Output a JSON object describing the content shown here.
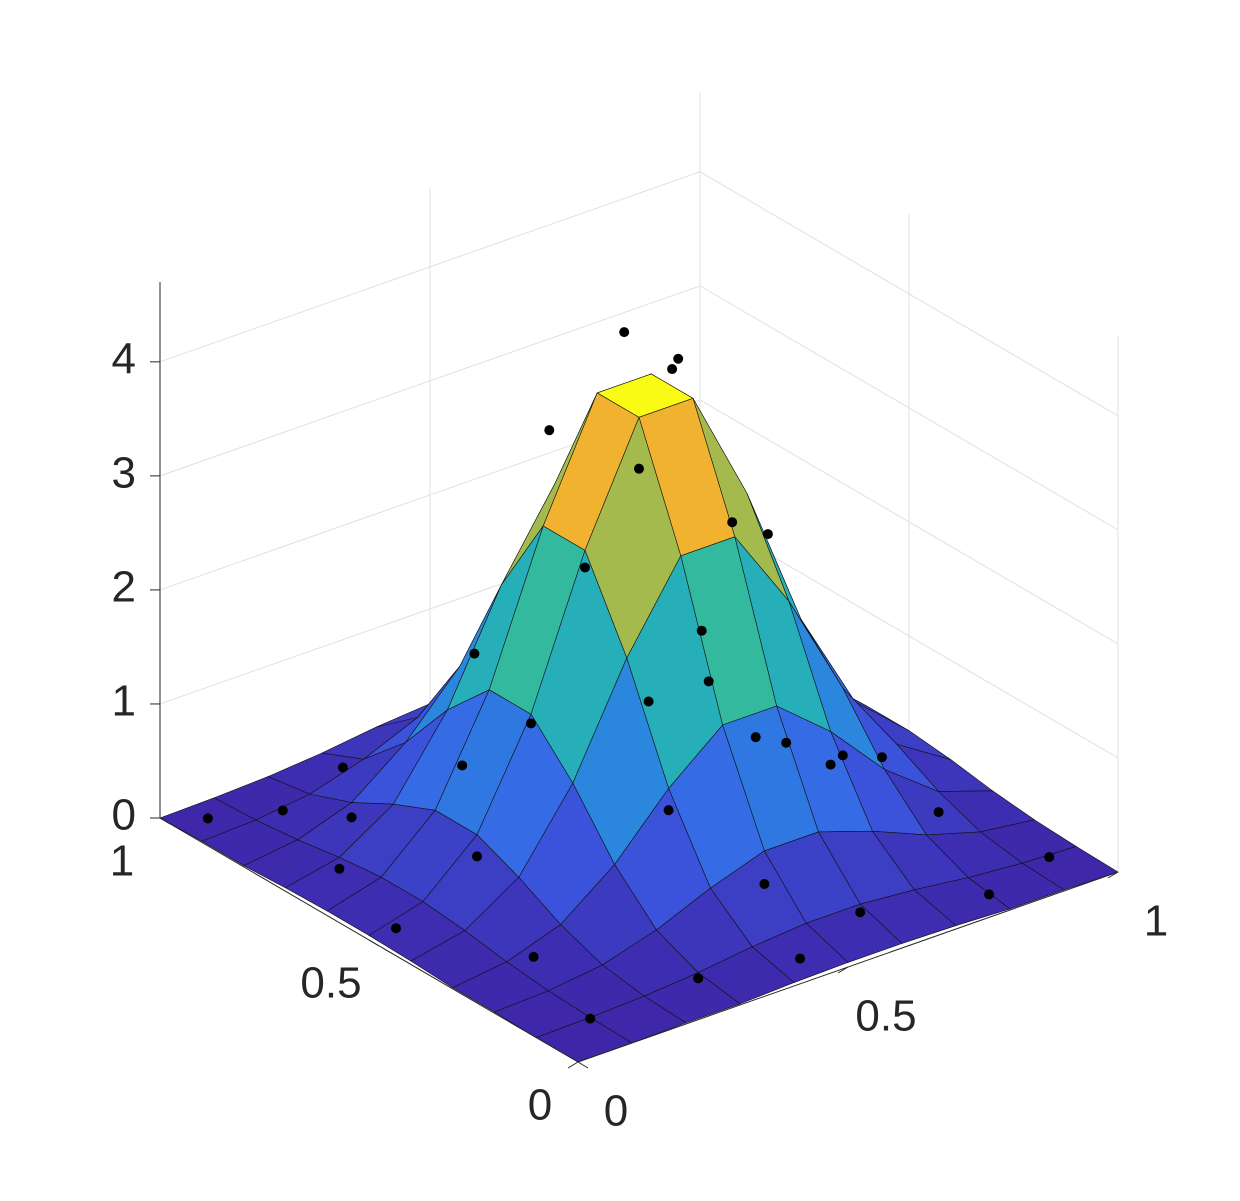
{
  "chart_data": {
    "type": "surface",
    "x": [
      0,
      0.1,
      0.2,
      0.3,
      0.4,
      0.5,
      0.6,
      0.7,
      0.8,
      0.9,
      1
    ],
    "y": [
      0,
      0.1,
      0.2,
      0.3,
      0.4,
      0.5,
      0.6,
      0.7,
      0.8,
      0.9,
      1
    ],
    "z": [
      [
        0.0,
        0.0,
        0.01,
        0.01,
        0.03,
        0.04,
        0.04,
        0.03,
        0.01,
        0.01,
        0.0
      ],
      [
        0.0,
        0.01,
        0.03,
        0.07,
        0.13,
        0.17,
        0.17,
        0.13,
        0.07,
        0.03,
        0.01
      ],
      [
        0.01,
        0.03,
        0.09,
        0.23,
        0.43,
        0.59,
        0.59,
        0.43,
        0.23,
        0.09,
        0.03
      ],
      [
        0.01,
        0.07,
        0.23,
        0.59,
        1.09,
        1.48,
        1.48,
        1.09,
        0.59,
        0.23,
        0.07
      ],
      [
        0.03,
        0.13,
        0.43,
        1.09,
        2.02,
        2.75,
        2.75,
        2.02,
        1.09,
        0.43,
        0.13
      ],
      [
        0.04,
        0.17,
        0.59,
        1.48,
        2.75,
        3.75,
        3.75,
        2.75,
        1.48,
        0.59,
        0.17
      ],
      [
        0.04,
        0.17,
        0.59,
        1.48,
        2.75,
        3.75,
        3.75,
        2.75,
        1.48,
        0.59,
        0.17
      ],
      [
        0.03,
        0.13,
        0.43,
        1.09,
        2.02,
        2.75,
        2.75,
        2.02,
        1.09,
        0.43,
        0.13
      ],
      [
        0.01,
        0.07,
        0.23,
        0.59,
        1.09,
        1.48,
        1.48,
        1.09,
        0.59,
        0.23,
        0.07
      ],
      [
        0.01,
        0.03,
        0.09,
        0.23,
        0.43,
        0.59,
        0.59,
        0.43,
        0.23,
        0.09,
        0.03
      ],
      [
        0.0,
        0.01,
        0.03,
        0.07,
        0.13,
        0.17,
        0.17,
        0.13,
        0.07,
        0.03,
        0.01
      ]
    ],
    "points": {
      "color": "#000000",
      "x": [
        0.05,
        0.15,
        0.3,
        0.1,
        0.2,
        0.05,
        0.15,
        0.3,
        0.1,
        0.45,
        0.6,
        0.8,
        0.95,
        0.9,
        0.95,
        0.85,
        0.75,
        0.9,
        0.4,
        0.6,
        0.35,
        0.5,
        0.55,
        0.6,
        0.45,
        0.65,
        0.4,
        0.7,
        0.3,
        0.5,
        0.75,
        0.25,
        0.7,
        0.2,
        0.5,
        0.8
      ],
      "y": [
        0.95,
        0.9,
        0.95,
        0.7,
        0.8,
        0.5,
        0.3,
        0.1,
        0.1,
        0.05,
        0.1,
        0.05,
        0.1,
        0.3,
        0.5,
        0.6,
        0.8,
        0.85,
        0.3,
        0.35,
        0.7,
        0.5,
        0.6,
        0.55,
        0.65,
        0.6,
        0.5,
        0.45,
        0.5,
        0.35,
        0.6,
        0.6,
        0.3,
        0.5,
        0.2,
        0.4
      ],
      "z": [
        0.02,
        0.03,
        0.05,
        0.03,
        0.1,
        0.02,
        0.03,
        0.02,
        0.0,
        0.05,
        0.1,
        0.03,
        0.0,
        0.05,
        0.02,
        0.1,
        0.2,
        0.02,
        0.9,
        1.1,
        1.5,
        3.3,
        4.2,
        3.9,
        3.4,
        3.8,
        2.6,
        2.5,
        1.4,
        2.2,
        2.2,
        0.9,
        0.8,
        0.4,
        0.3,
        0.5
      ]
    },
    "colormap": "parula",
    "xlim": [
      0,
      1
    ],
    "ylim": [
      0,
      1
    ],
    "zlim": [
      0,
      4.7
    ],
    "xticks": [
      0,
      0.5,
      1
    ],
    "yticks": [
      0,
      0.5,
      1
    ],
    "zticks": [
      0,
      1,
      2,
      3,
      4
    ],
    "grid": true
  }
}
